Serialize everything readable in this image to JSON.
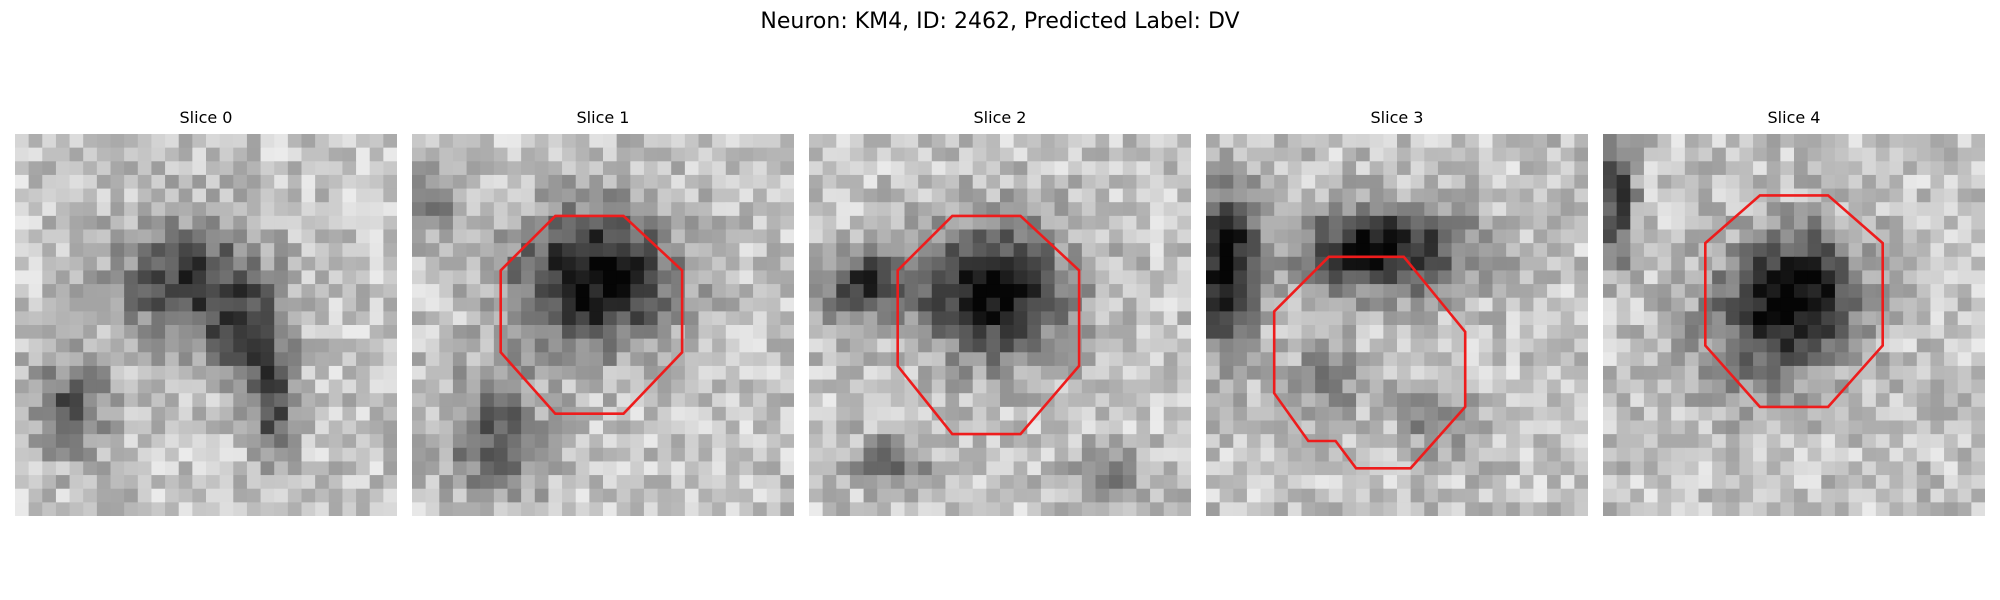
{
  "figure": {
    "title": "Neuron: KM4, ID: 2462, Predicted Label: DV"
  },
  "colors": {
    "contour": "#ee1c1c",
    "dark_pixel": "#000000",
    "light_pixel": "#ffffff"
  },
  "panels": [
    {
      "title": "Slice 0",
      "has_roi": false
    },
    {
      "title": "Slice 1",
      "has_roi": true
    },
    {
      "title": "Slice 2",
      "has_roi": true
    },
    {
      "title": "Slice 3",
      "has_roi": true
    },
    {
      "title": "Slice 4",
      "has_roi": true
    }
  ]
}
